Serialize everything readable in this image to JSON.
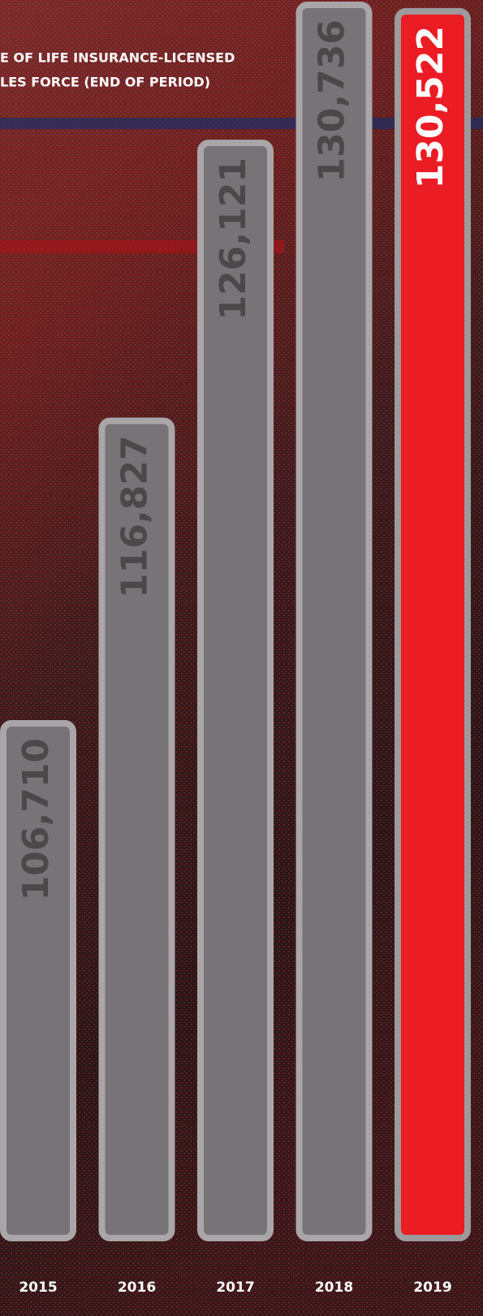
{
  "chart_data": {
    "type": "bar",
    "title": [
      "E OF LIFE INSURANCE-LICENSED",
      "LES FORCE (END OF PERIOD)"
    ],
    "categories": [
      "2015",
      "2016",
      "2017",
      "2018",
      "2019"
    ],
    "values": [
      106710,
      116827,
      126121,
      130736,
      130522
    ],
    "value_labels": [
      "106,710",
      "116,827",
      "126,121",
      "130,736",
      "130,522"
    ],
    "colors": [
      "#787377",
      "#787377",
      "#787377",
      "#787377",
      "#ec1c24"
    ],
    "ylim": [
      89500,
      130900
    ]
  }
}
